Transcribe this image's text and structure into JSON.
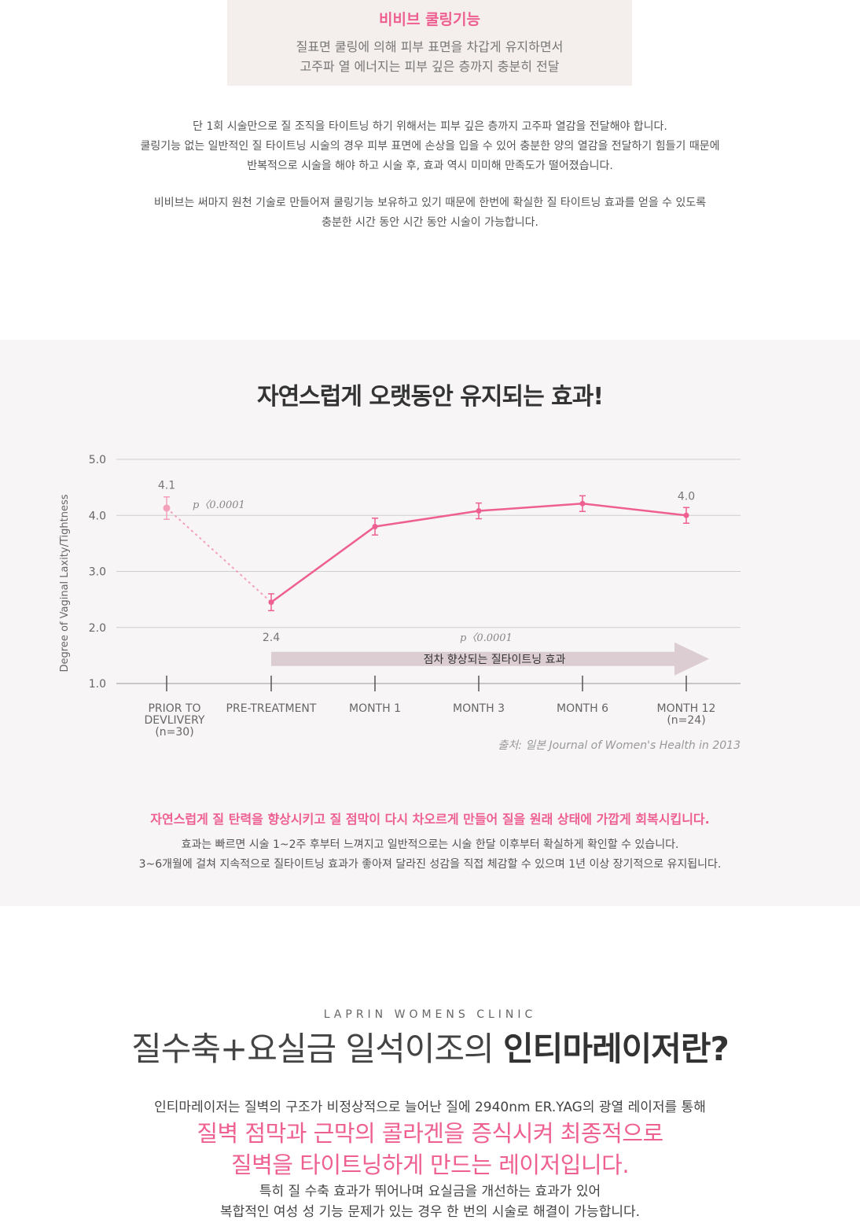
{
  "top_box": {
    "title": "비비브 쿨링기능",
    "line1": "질표면 쿨링에 의해 피부 표면을 차갑게 유지하면서",
    "line2": "고주파 열 에너지는 피부 깊은 층까지 충분히 전달"
  },
  "intro": {
    "p1_line1": "단 1회 시술만으로 질 조직을 타이트닝 하기 위해서는 피부 깊은 층까지 고주파 열감을 전달해야 합니다.",
    "p1_line2": "쿨링기능 없는 일반적인 질 타이트닝 시술의 경우 피부 표면에 손상을 입을 수 있어 충분한 양의 열감을  전달하기 힘들기 때문에",
    "p1_line3": "반복적으로 시술을 해야 하고 시술 후, 효과 역시 미미해 만족도가 떨어졌습니다.",
    "p2_line1": "비비브는 써마지 원천 기술로 만들어져 쿨링기능 보유하고 있기 때문에 한번에 확실한 질 타이트닝 효과를 얻을 수 있도록",
    "p2_line2": "충분한 시간 동안 시간 동안 시술이 가능합니다."
  },
  "chart_section": {
    "title": "자연스럽게 오랫동안 유지되는 효과!",
    "source": "출처: 일본 Journal of Women's Health in 2013",
    "note_pink": "자연스럽게 질 탄력을 향상시키고 질 점막이 다시 차오르게 만들어 질을 원래 상태에 가깝게 회복시킵니다.",
    "note_line1": "효과는 빠르면 시술 1~2주 후부터 느껴지고 일반적으로는 시술 한달 이후부터 확실하게 확인할 수 있습니다.",
    "note_line2": "3~6개월에 걸쳐 지속적으로 질타이트닝 효과가 좋아져 달라진 성감을 직접 체감할 수 있으며 1년 이상 장기적으로 유지됩니다."
  },
  "chart_data": {
    "type": "line",
    "title": "",
    "ylabel": "Degree of Vaginal Laxity/Tightness",
    "ylim": [
      1.0,
      5.0
    ],
    "yticks": [
      "5.0",
      "4.0",
      "3.0",
      "2.0",
      "1.0"
    ],
    "categories": [
      [
        "PRIOR TO",
        "DEVLIVERY",
        "(n=30)"
      ],
      [
        "PRE-TREATMENT"
      ],
      [
        "MONTH 1"
      ],
      [
        "MONTH 3"
      ],
      [
        "MONTH 6"
      ],
      [
        "MONTH 12",
        "(n=24)"
      ]
    ],
    "values": [
      4.13,
      2.45,
      3.8,
      4.08,
      4.21,
      4.0
    ],
    "error": [
      0.2,
      0.15,
      0.15,
      0.14,
      0.14,
      0.14
    ],
    "dotted_segment": [
      0,
      1
    ],
    "data_labels": [
      {
        "index": 0,
        "text": "4.1"
      },
      {
        "index": 1,
        "text": "2.4"
      },
      {
        "index": 5,
        "text": "4.0"
      }
    ],
    "p_value_1": "p〈0.0001",
    "p_value_2": "p〈0.0001",
    "arrow_label": "점차 향상되는 질타이트닝 효과",
    "line_color": "#ee5f92",
    "arrow_color": "#dccdd3",
    "grid": true
  },
  "clinic": {
    "label": "LAPRIN WOMENS CLINIC",
    "heading_light": "질수축+요실금 일석이조의 ",
    "heading_bold": "인티마레이저란?",
    "desc_line1": "인티마레이저는 질벽의 구조가 비정상적으로 늘어난 질에 2940nm ER.YAG의 광열 레이저를 통해",
    "pink_line1": "질벽 점막과 근막의 콜라겐을 증식시켜 최종적으로",
    "pink_line2": "질벽을 타이트닝하게 만드는 레이저입니다.",
    "desc_line2": "특히 질 수축 효과가 뛰어나며 요실금을 개선하는 효과가 있어",
    "desc_line3": "복합적인 여성 성 기능 문제가 있는 경우 한 번의 시술로 해결이 가능합니다."
  }
}
